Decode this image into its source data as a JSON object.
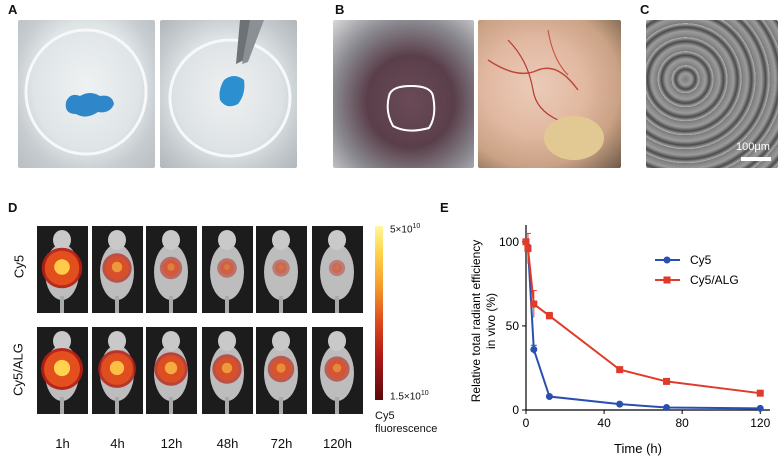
{
  "panels": {
    "a": "A",
    "b": "B",
    "c": "C",
    "d": "D",
    "e": "E"
  },
  "panel_c": {
    "scalebar": "100μm"
  },
  "panel_d": {
    "row_labels": [
      "Cy5",
      "Cy5/ALG"
    ],
    "time_labels": [
      "1h",
      "4h",
      "12h",
      "48h",
      "72h",
      "120h"
    ],
    "colorbar_max": "5×10",
    "colorbar_max_exp": "10",
    "colorbar_min": "1.5×10",
    "colorbar_min_exp": "10",
    "colorbar_title_1": "Cy5",
    "colorbar_title_2": "fluorescence",
    "signal_cy5": [
      0.95,
      0.55,
      0.3,
      0.2,
      0.12,
      0.08
    ],
    "signal_alg": [
      1.0,
      0.85,
      0.7,
      0.55,
      0.45,
      0.4
    ]
  },
  "chart_data": {
    "type": "line",
    "xlabel": "Time (h)",
    "ylabel_1": "Relative total radiant efficiency",
    "ylabel_2": "in vivo (%)",
    "xlim": [
      0,
      125
    ],
    "ylim": [
      0,
      110
    ],
    "xticks": [
      0,
      40,
      80,
      120
    ],
    "yticks": [
      0,
      50,
      100
    ],
    "legend_position": "top-right",
    "series": [
      {
        "name": "Cy5",
        "color": "#2a4fb0",
        "x": [
          0,
          1,
          4,
          12,
          48,
          72,
          120
        ],
        "y": [
          100,
          97,
          36,
          8,
          3.5,
          1.5,
          1
        ],
        "err": [
          0,
          0,
          2.5,
          1,
          0.5,
          0.5,
          0.3
        ]
      },
      {
        "name": "Cy5/ALG",
        "color": "#e03a2a",
        "x": [
          0,
          1,
          4,
          12,
          48,
          72,
          120
        ],
        "y": [
          100,
          96,
          63,
          56,
          24,
          17,
          10
        ],
        "err": [
          0,
          9,
          8,
          2,
          1.5,
          1.5,
          1
        ]
      }
    ]
  }
}
